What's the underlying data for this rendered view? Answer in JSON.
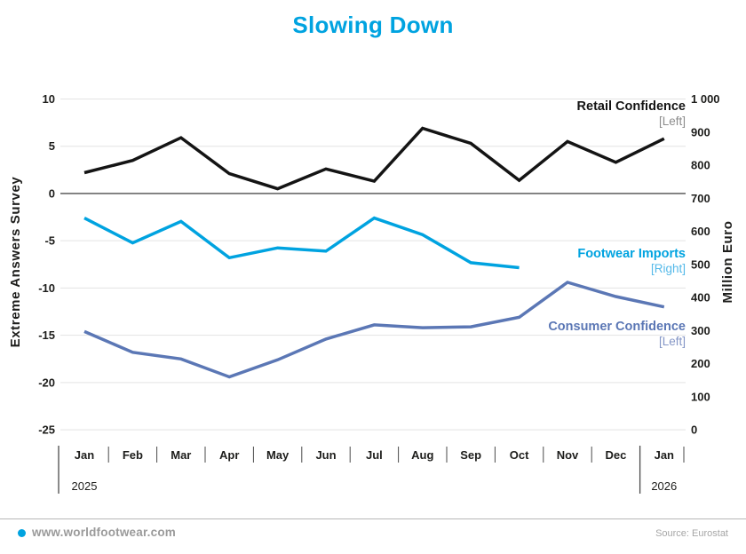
{
  "title": "Slowing Down",
  "footer": {
    "site": "www.worldfootwear.com",
    "source": "Source: Eurostat"
  },
  "colors": {
    "accent": "#00a3e0",
    "text": "#1d1d1b",
    "grid": "#e3e3e3",
    "zero_line": "#4d4d4d",
    "axis_separator": "#4a4a4a"
  },
  "chart_data": {
    "type": "line",
    "title": "Slowing Down",
    "categories": [
      "Jan",
      "Feb",
      "Mar",
      "Apr",
      "May",
      "Jun",
      "Jul",
      "Aug",
      "Sep",
      "Oct",
      "Nov",
      "Dec",
      "Jan"
    ],
    "year_labels": [
      {
        "label": "2025",
        "index": 0
      },
      {
        "label": "2026",
        "index": 12
      }
    ],
    "left_axis": {
      "label": "Extreme Answers Survey",
      "min": -25,
      "max": 10,
      "step": 5,
      "ticks": [
        "10",
        "5",
        "0",
        "-5",
        "-10",
        "-15",
        "-20",
        "-25"
      ]
    },
    "right_axis": {
      "label": "Million Euro",
      "min": 0,
      "max": 1000,
      "step": 100,
      "ticks": [
        "1 000",
        "900",
        "800",
        "700",
        "600",
        "500",
        "400",
        "300",
        "200",
        "100",
        "0"
      ]
    },
    "grid": true,
    "legend_position": "inline-right",
    "series": [
      {
        "name": "Retail Confidence",
        "sub_label": "[Left]",
        "axis": "left",
        "color": "#141414",
        "sub_color": "#8c8c8c",
        "values": [
          2.2,
          3.5,
          5.9,
          2.1,
          0.5,
          2.6,
          1.3,
          6.9,
          5.3,
          1.4,
          5.5,
          3.3,
          5.8
        ]
      },
      {
        "name": "Footwear Imports",
        "sub_label": "[Right]",
        "axis": "right",
        "color": "#00a3e0",
        "sub_color": "#54b9e9",
        "values": [
          640,
          565,
          630,
          520,
          550,
          540,
          640,
          590,
          505,
          490
        ]
      },
      {
        "name": "Consumer Confidence",
        "sub_label": "[Left]",
        "axis": "left",
        "color": "#5b77b5",
        "sub_color": "#8496c6",
        "values": [
          -14.6,
          -16.8,
          -17.5,
          -19.4,
          -17.6,
          -15.4,
          -13.9,
          -14.2,
          -14.1,
          -13.1,
          -9.4,
          -10.9,
          -12.0
        ]
      }
    ]
  }
}
